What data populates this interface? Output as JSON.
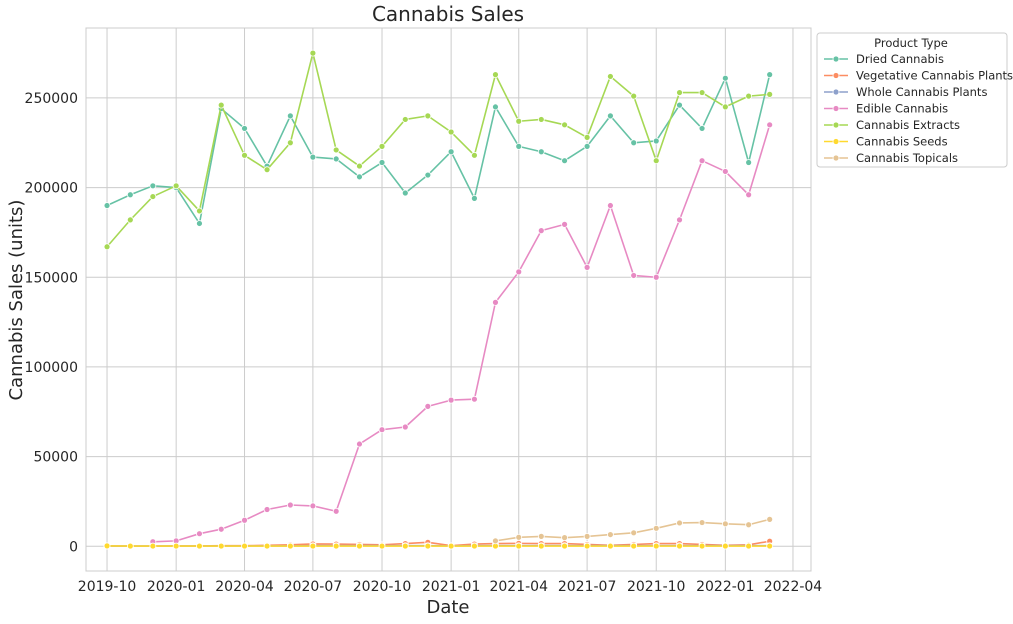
{
  "chart_data": {
    "type": "line",
    "title": "Cannabis Sales",
    "xlabel": "Date",
    "ylabel": "Cannabis Sales (units)",
    "xlim": [
      "2019-09-03",
      "2022-04-25"
    ],
    "ylim": [
      -13800,
      289000
    ],
    "x_ticks": [
      {
        "date": "2019-10-01",
        "label": "2019-10"
      },
      {
        "date": "2020-01-01",
        "label": "2020-01"
      },
      {
        "date": "2020-04-01",
        "label": "2020-04"
      },
      {
        "date": "2020-07-01",
        "label": "2020-07"
      },
      {
        "date": "2020-10-01",
        "label": "2020-10"
      },
      {
        "date": "2021-01-01",
        "label": "2021-01"
      },
      {
        "date": "2021-04-01",
        "label": "2021-04"
      },
      {
        "date": "2021-07-01",
        "label": "2021-07"
      },
      {
        "date": "2021-10-01",
        "label": "2021-10"
      },
      {
        "date": "2022-01-01",
        "label": "2022-01"
      },
      {
        "date": "2022-04-01",
        "label": "2022-04"
      }
    ],
    "y_ticks": [
      {
        "value": 0,
        "label": "0"
      },
      {
        "value": 50000,
        "label": "50000"
      },
      {
        "value": 100000,
        "label": "100000"
      },
      {
        "value": 150000,
        "label": "150000"
      },
      {
        "value": 200000,
        "label": "200000"
      },
      {
        "value": 250000,
        "label": "250000"
      }
    ],
    "grid": true,
    "legend": {
      "title": "Product Type",
      "placement": "outside-top-right"
    },
    "x": [
      "2019-10-01",
      "2019-11-01",
      "2019-12-01",
      "2020-01-01",
      "2020-02-01",
      "2020-03-01",
      "2020-04-01",
      "2020-05-01",
      "2020-06-01",
      "2020-07-01",
      "2020-08-01",
      "2020-09-01",
      "2020-10-01",
      "2020-11-01",
      "2020-12-01",
      "2021-01-01",
      "2021-02-01",
      "2021-03-01",
      "2021-04-01",
      "2021-05-01",
      "2021-06-01",
      "2021-07-01",
      "2021-08-01",
      "2021-09-01",
      "2021-10-01",
      "2021-11-01",
      "2021-12-01",
      "2022-01-01",
      "2022-02-01",
      "2022-03-01"
    ],
    "series": [
      {
        "name": "Dried Cannabis",
        "color": "#66c2a5",
        "values": [
          190000,
          196000,
          201000,
          200000,
          180000,
          244000,
          233000,
          212000,
          240000,
          217000,
          216000,
          206000,
          214000,
          197000,
          207000,
          220000,
          194000,
          245000,
          223000,
          220000,
          215000,
          223000,
          240000,
          225000,
          226000,
          246000,
          233000,
          261000,
          214000,
          263000
        ]
      },
      {
        "name": "Vegetative Cannabis Plants",
        "color": "#fc8d62",
        "values": [
          200,
          100,
          100,
          200,
          200,
          300,
          300,
          500,
          800,
          1300,
          1200,
          1000,
          800,
          1500,
          2200,
          300,
          1200,
          1500,
          1600,
          1500,
          1500,
          1000,
          500,
          1000,
          1500,
          1500,
          1000,
          500,
          800,
          2800
        ]
      },
      {
        "name": "Whole Cannabis Plants",
        "color": "#8da0cb",
        "values": [
          100,
          100,
          100,
          100,
          100,
          100,
          100,
          200,
          200,
          300,
          300,
          300,
          300,
          300,
          300,
          200,
          300,
          300,
          300,
          300,
          300,
          300,
          300,
          300,
          300,
          300,
          300,
          300,
          300,
          300
        ]
      },
      {
        "name": "Edible Cannabis",
        "color": "#e78ac3",
        "values": [
          null,
          null,
          2500,
          3000,
          7000,
          9500,
          14500,
          20500,
          23000,
          22500,
          19500,
          57000,
          65000,
          66500,
          78000,
          81500,
          82000,
          136000,
          153000,
          176000,
          179500,
          155500,
          190000,
          151000,
          150000,
          182000,
          215000,
          209000,
          196000,
          235000
        ]
      },
      {
        "name": "Cannabis Extracts",
        "color": "#a6d854",
        "values": [
          167000,
          182000,
          195000,
          201000,
          187000,
          246000,
          218000,
          210000,
          225000,
          275000,
          221000,
          212000,
          223000,
          238000,
          240000,
          231000,
          218000,
          263000,
          237000,
          238000,
          235000,
          228000,
          262000,
          251000,
          215000,
          253000,
          253000,
          245000,
          251000,
          252000
        ]
      },
      {
        "name": "Cannabis Seeds",
        "color": "#ffd92f",
        "values": [
          200,
          100,
          100,
          100,
          100,
          100,
          100,
          100,
          100,
          100,
          100,
          100,
          100,
          100,
          100,
          100,
          100,
          100,
          100,
          100,
          100,
          100,
          100,
          100,
          100,
          100,
          100,
          100,
          100,
          100
        ]
      },
      {
        "name": "Cannabis Topicals",
        "color": "#e5c494",
        "values": [
          null,
          null,
          null,
          null,
          null,
          null,
          null,
          null,
          null,
          null,
          null,
          null,
          null,
          null,
          null,
          null,
          null,
          3000,
          5000,
          5500,
          4800,
          5500,
          6500,
          7500,
          10000,
          13000,
          13200,
          12500,
          12000,
          15000
        ]
      }
    ]
  }
}
